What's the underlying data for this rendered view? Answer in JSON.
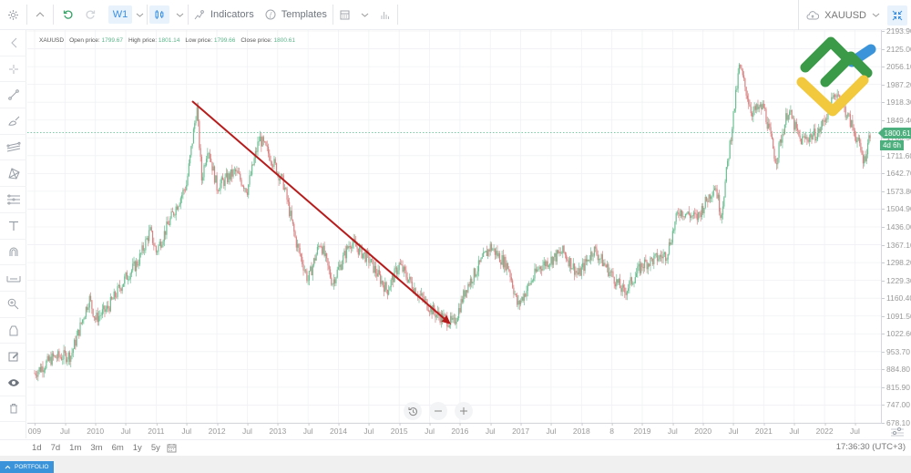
{
  "toolbar": {
    "timeframe": "W1",
    "indicators_label": "Indicators",
    "templates_label": "Templates",
    "symbol": "XAUUSD",
    "icons": [
      "gear-icon",
      "chevron-up-icon",
      "undo-icon",
      "redo-icon",
      "chevron-down-icon",
      "candlestick-icon",
      "chevron-down-icon",
      "indicators-icon",
      "templates-icon",
      "calculator-icon",
      "chevron-down-icon",
      "volume-bars-icon",
      "cloud-upload-icon",
      "chevron-down-icon",
      "fullscreen-collapse-icon"
    ]
  },
  "legend": {
    "symbol": "XAUUSD",
    "open_label": "Open price:",
    "open": "1799.67",
    "high_label": "High price:",
    "high": "1801.14",
    "low_label": "Low price:",
    "low": "1799.66",
    "close_label": "Close price:",
    "close": "1800.61"
  },
  "sidebar": {
    "items": [
      "collapse-icon",
      "crosshair-icon",
      "trendline-icon",
      "brush-icon",
      "channel-icon",
      "pattern-icon",
      "fibonacci-icon",
      "text-icon",
      "magnet-icon",
      "measure-icon",
      "zoom-in-icon",
      "lock-icon",
      "edit-icon",
      "eye-icon",
      "trash-icon"
    ]
  },
  "price_axis": {
    "ticks": [
      "2193.90",
      "2125.00",
      "2056.10",
      "1987.20",
      "1918.30",
      "1849.40",
      "1780.50",
      "1711.60",
      "1642.70",
      "1573.80",
      "1504.90",
      "1436.00",
      "1367.10",
      "1298.20",
      "1229.30",
      "1160.40",
      "1091.50",
      "1022.60",
      "953.70",
      "884.80",
      "815.90",
      "747.00",
      "678.10"
    ],
    "last_price": "1800.61",
    "countdown": "4d 6h"
  },
  "time_axis": {
    "labels": [
      "009",
      "Jul",
      "2010",
      "Jul",
      "2011",
      "Jul",
      "2012",
      "Jul",
      "2013",
      "Jul",
      "2014",
      "Jul",
      "2015",
      "Jul",
      "2016",
      "Jul",
      "2017",
      "Jul",
      "2018",
      "8",
      "2019",
      "Jul",
      "2020",
      "Jul",
      "2021",
      "Jul",
      "2022",
      "Jul"
    ]
  },
  "ranges": [
    "1d",
    "7d",
    "1m",
    "3m",
    "6m",
    "1y",
    "5y"
  ],
  "clock": "17:36:30 (UTC+3)",
  "portfolio_label": "PORTFOLIO",
  "colors": {
    "up": "#4caf7d",
    "down": "#d9534f",
    "trend": "#b71c1c",
    "accent": "#3b94d9"
  },
  "chart_data": {
    "type": "candlestick",
    "title": "XAUUSD W1",
    "ylim": [
      678.1,
      2193.9
    ],
    "x_range": [
      "2009",
      "2022-Jul"
    ],
    "path_points": [
      [
        2009.0,
        870
      ],
      [
        2009.3,
        930
      ],
      [
        2009.6,
        940
      ],
      [
        2009.9,
        1160
      ],
      [
        2010.0,
        1080
      ],
      [
        2010.2,
        1120
      ],
      [
        2010.5,
        1240
      ],
      [
        2010.7,
        1300
      ],
      [
        2010.9,
        1420
      ],
      [
        2011.0,
        1340
      ],
      [
        2011.3,
        1500
      ],
      [
        2011.5,
        1600
      ],
      [
        2011.67,
        1900
      ],
      [
        2011.75,
        1620
      ],
      [
        2011.85,
        1750
      ],
      [
        2012.0,
        1590
      ],
      [
        2012.3,
        1650
      ],
      [
        2012.5,
        1580
      ],
      [
        2012.7,
        1780
      ],
      [
        2012.9,
        1700
      ],
      [
        2013.1,
        1600
      ],
      [
        2013.3,
        1380
      ],
      [
        2013.5,
        1230
      ],
      [
        2013.7,
        1380
      ],
      [
        2013.9,
        1220
      ],
      [
        2014.2,
        1380
      ],
      [
        2014.5,
        1310
      ],
      [
        2014.8,
        1190
      ],
      [
        2015.0,
        1290
      ],
      [
        2015.3,
        1180
      ],
      [
        2015.6,
        1100
      ],
      [
        2015.9,
        1060
      ],
      [
        2016.1,
        1200
      ],
      [
        2016.5,
        1360
      ],
      [
        2016.8,
        1280
      ],
      [
        2016.95,
        1130
      ],
      [
        2017.3,
        1280
      ],
      [
        2017.7,
        1340
      ],
      [
        2017.95,
        1250
      ],
      [
        2018.2,
        1350
      ],
      [
        2018.5,
        1250
      ],
      [
        2018.7,
        1180
      ],
      [
        2019.0,
        1290
      ],
      [
        2019.4,
        1330
      ],
      [
        2019.6,
        1500
      ],
      [
        2019.9,
        1470
      ],
      [
        2020.2,
        1600
      ],
      [
        2020.3,
        1480
      ],
      [
        2020.6,
        2060
      ],
      [
        2020.8,
        1880
      ],
      [
        2021.0,
        1900
      ],
      [
        2021.2,
        1690
      ],
      [
        2021.4,
        1890
      ],
      [
        2021.6,
        1770
      ],
      [
        2021.9,
        1800
      ],
      [
        2022.2,
        1960
      ],
      [
        2022.5,
        1800
      ],
      [
        2022.65,
        1690
      ],
      [
        2022.75,
        1800
      ]
    ],
    "trendline": {
      "from": [
        "2011-Aug",
        1920
      ],
      "to": [
        "2015-Dec",
        1050
      ],
      "arrow": true,
      "color": "#b71c1c"
    },
    "last_price_line": 1800.61
  }
}
